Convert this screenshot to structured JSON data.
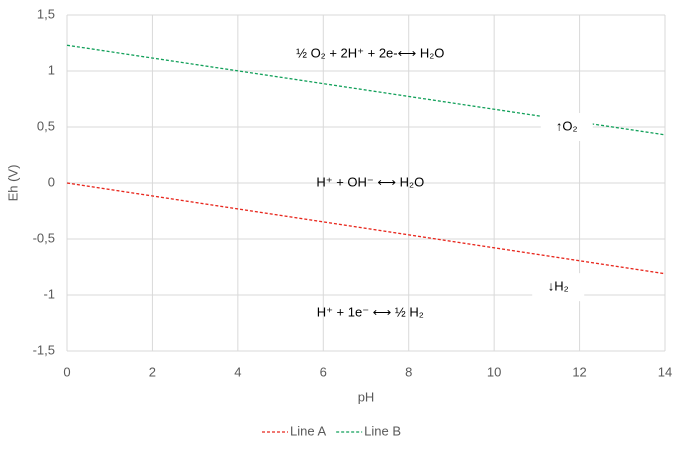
{
  "chart_data": {
    "type": "line",
    "x_label": "pH",
    "y_label": "Eh (V)",
    "x": [
      0,
      14
    ],
    "series": [
      {
        "name": "Line A",
        "color": "#e8281e",
        "values": [
          0,
          -0.81
        ]
      },
      {
        "name": "Line B",
        "color": "#12a05a",
        "values": [
          1.23,
          0.43
        ]
      }
    ],
    "xlim": [
      0,
      14
    ],
    "xticks": [
      0,
      2,
      4,
      6,
      8,
      10,
      12,
      14
    ],
    "ylim": [
      -1.5,
      1.5
    ],
    "yticks": [
      {
        "value": -1.5,
        "label": "-1,5"
      },
      -1,
      {
        "value": -0.5,
        "label": "-0,5"
      },
      0,
      {
        "value": 0.5,
        "label": "0,5"
      },
      1,
      {
        "value": 1.5,
        "label": "1,5"
      }
    ],
    "grid": true,
    "dashed": true,
    "legend": "bottom",
    "annotations": [
      "½ O₂ + 2H⁺ + 2e-⟷ H₂O",
      "↑O₂",
      "H⁺ + OH⁻ ⟷ H₂O",
      "↓H₂",
      "H⁺ + 1e⁻ ⟷ ½ H₂"
    ]
  }
}
